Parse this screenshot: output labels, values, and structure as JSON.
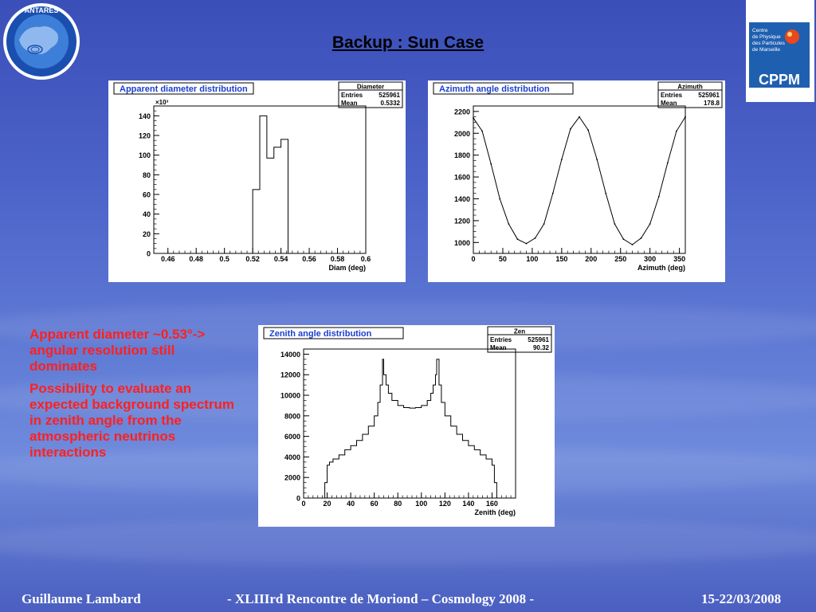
{
  "title": "Backup : Sun Case",
  "logos": {
    "antares_text": "ANTARES",
    "cppm_lines": [
      "Centre",
      "de Physique",
      "des Particules",
      "de Marseille"
    ],
    "cppm_word": "CPPM"
  },
  "notes": [
    "Apparent diameter ~0.53°-> angular resolution still dominates",
    "Possibility to evaluate an expected background spectrum in zenith angle from the atmospheric neutrinos interactions"
  ],
  "footer": {
    "author": "Guillaume Lambard",
    "event": "-   XLIIIrd    Rencontre de Moriond – Cosmology 2008    -",
    "date": "15-22/03/2008"
  },
  "chart_data": [
    {
      "type": "bar",
      "title": "Apparent diameter distribution",
      "stats": {
        "name": "Diameter",
        "entries_label": "Entries",
        "entries": "525961",
        "mean_label": "Mean",
        "mean": "0.5332"
      },
      "xlabel": "Diam (deg)",
      "ylabel_multiplier": "×10³",
      "xlim": [
        0.45,
        0.6
      ],
      "ylim": [
        0,
        150
      ],
      "xticks": [
        "0.46",
        "0.48",
        "0.5",
        "0.52",
        "0.54",
        "0.56",
        "0.58",
        "0.6"
      ],
      "yticks": [
        "0",
        "20",
        "40",
        "60",
        "80",
        "100",
        "120",
        "140"
      ],
      "bins": {
        "edges": [
          0.52,
          0.525,
          0.53,
          0.535,
          0.54,
          0.545
        ],
        "values": [
          65,
          140,
          97,
          108,
          116
        ]
      }
    },
    {
      "type": "line",
      "title": "Azimuth angle distribution",
      "stats": {
        "name": "Azimuth",
        "entries_label": "Entries",
        "entries": "525961",
        "mean_label": "Mean",
        "mean": "178.8"
      },
      "xlabel": "Azimuth (deg)",
      "xlim": [
        0,
        360
      ],
      "ylim": [
        900,
        2250
      ],
      "xticks": [
        "0",
        "50",
        "100",
        "150",
        "200",
        "250",
        "300",
        "350"
      ],
      "yticks": [
        "1000",
        "1200",
        "1400",
        "1600",
        "1800",
        "2000",
        "2200"
      ],
      "x": [
        0,
        15,
        30,
        45,
        60,
        75,
        90,
        105,
        120,
        135,
        150,
        165,
        180,
        195,
        210,
        225,
        240,
        255,
        270,
        285,
        300,
        315,
        330,
        345,
        360
      ],
      "y": [
        2140,
        2020,
        1720,
        1400,
        1170,
        1030,
        990,
        1040,
        1170,
        1450,
        1760,
        2040,
        2150,
        2030,
        1760,
        1450,
        1170,
        1030,
        980,
        1040,
        1170,
        1420,
        1730,
        2020,
        2150
      ]
    },
    {
      "type": "bar",
      "title": "Zenith angle distribution",
      "stats": {
        "name": "Zen",
        "entries_label": "Entries",
        "entries": "525961",
        "mean_label": "Mean",
        "mean": "90.32"
      },
      "xlabel": "Zenith (deg)",
      "xlim": [
        0,
        180
      ],
      "ylim": [
        0,
        14500
      ],
      "xticks": [
        "0",
        "20",
        "40",
        "60",
        "80",
        "100",
        "120",
        "140",
        "160"
      ],
      "yticks": [
        "0",
        "2000",
        "4000",
        "6000",
        "8000",
        "10000",
        "12000",
        "14000"
      ],
      "x": [
        18,
        20,
        22,
        25,
        30,
        35,
        40,
        45,
        50,
        55,
        60,
        63,
        65,
        67,
        68,
        70,
        72,
        75,
        80,
        85,
        90,
        95,
        100,
        105,
        108,
        110,
        112,
        113,
        115,
        117,
        120,
        125,
        130,
        135,
        140,
        145,
        150,
        155,
        160,
        162
      ],
      "y": [
        1500,
        3200,
        3500,
        3800,
        4200,
        4700,
        5100,
        5600,
        6200,
        7000,
        8000,
        9300,
        11000,
        13500,
        12000,
        11000,
        10200,
        9500,
        9000,
        8800,
        8750,
        8800,
        9000,
        9500,
        10200,
        11000,
        12000,
        13500,
        11000,
        9300,
        8000,
        7000,
        6200,
        5600,
        5100,
        4700,
        4200,
        3800,
        3200,
        1500
      ]
    }
  ]
}
